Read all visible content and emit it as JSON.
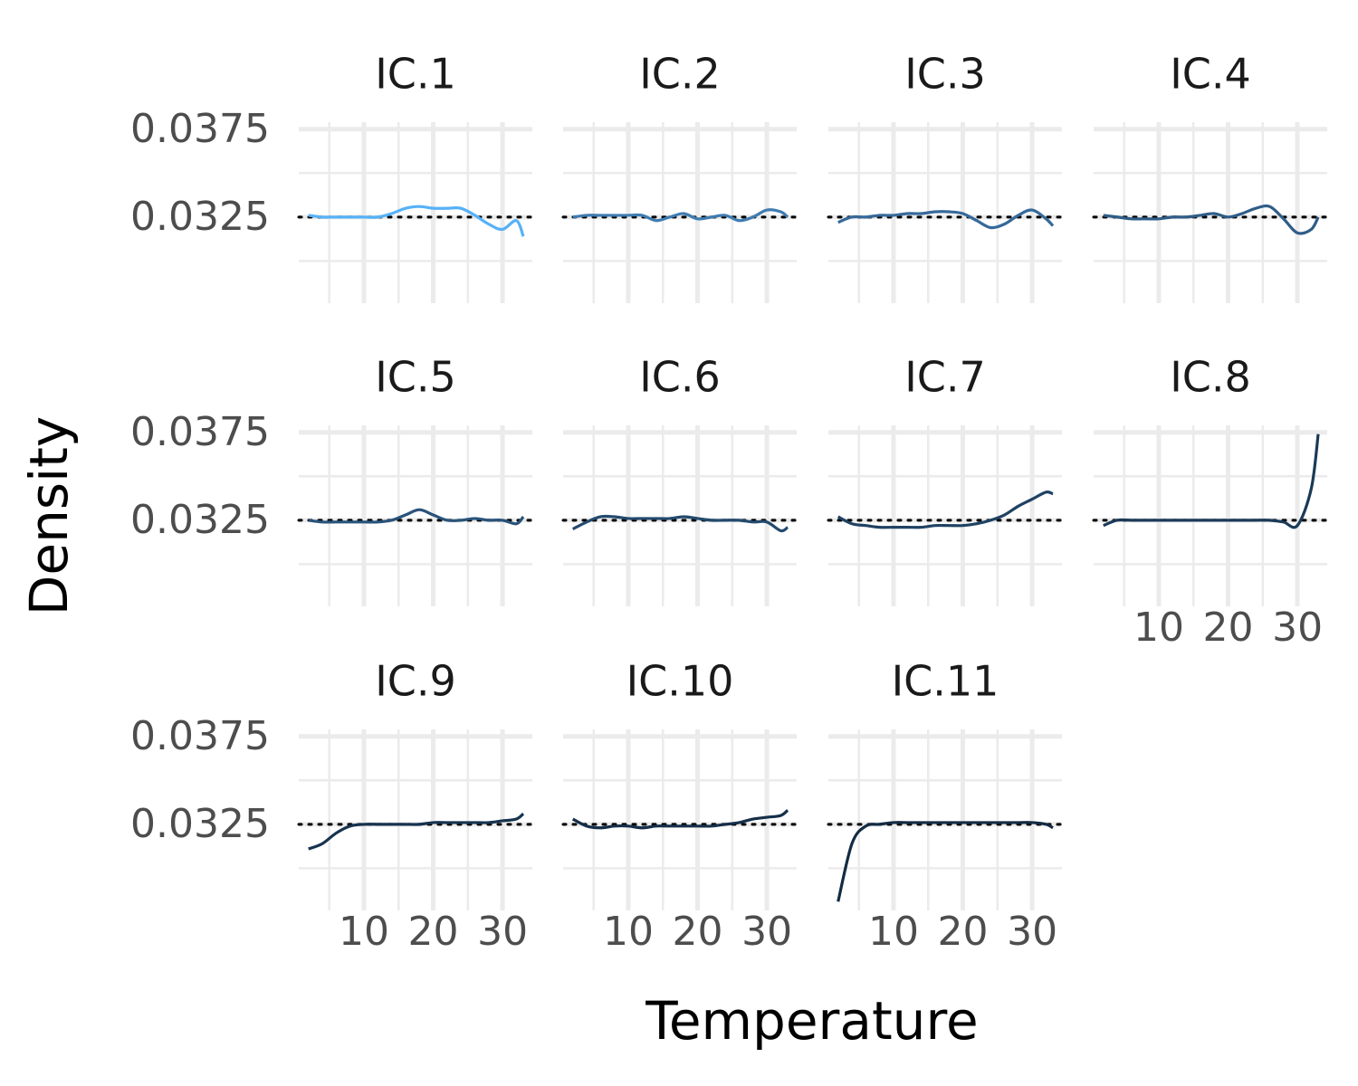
{
  "x_label": "Temperature",
  "y_label": "Density",
  "chart_data": [
    {
      "type": "line",
      "title": "IC.1",
      "color": "#56b1f7",
      "x": [
        2,
        4,
        6,
        8,
        10,
        12,
        14,
        16,
        18,
        20,
        22,
        24,
        26,
        28,
        30,
        32,
        33
      ],
      "values": [
        0.0326,
        0.0325,
        0.0325,
        0.0325,
        0.0325,
        0.0325,
        0.0327,
        0.033,
        0.0331,
        0.033,
        0.033,
        0.033,
        0.0326,
        0.0321,
        0.0318,
        0.0323,
        0.0314
      ],
      "xlim": [
        0.6,
        34.3
      ],
      "ylim": [
        0.0276,
        0.0379
      ],
      "xticks": [
        10,
        20,
        30
      ],
      "yticks": [
        0.0325,
        0.0375
      ],
      "hline": 0.0325,
      "grid": true
    },
    {
      "type": "line",
      "title": "IC.2",
      "color": "#3f7cb0",
      "x": [
        2,
        4,
        6,
        8,
        10,
        12,
        14,
        16,
        18,
        20,
        22,
        24,
        26,
        28,
        30,
        32,
        33
      ],
      "values": [
        0.0325,
        0.0326,
        0.0326,
        0.0326,
        0.0326,
        0.0326,
        0.0323,
        0.0325,
        0.0327,
        0.0324,
        0.0325,
        0.0326,
        0.0323,
        0.0325,
        0.0329,
        0.0328,
        0.0325
      ],
      "xlim": [
        0.6,
        34.3
      ],
      "ylim": [
        0.0276,
        0.0379
      ],
      "xticks": [
        10,
        20,
        30
      ],
      "yticks": [
        0.0325,
        0.0375
      ],
      "hline": 0.0325,
      "grid": true
    },
    {
      "type": "line",
      "title": "IC.3",
      "color": "#36699a",
      "x": [
        2,
        4,
        6,
        8,
        10,
        12,
        14,
        16,
        18,
        20,
        22,
        24,
        26,
        28,
        30,
        32,
        33
      ],
      "values": [
        0.0322,
        0.0325,
        0.0325,
        0.0326,
        0.0326,
        0.0327,
        0.0327,
        0.0328,
        0.0328,
        0.0327,
        0.0323,
        0.0319,
        0.0321,
        0.0326,
        0.0329,
        0.0324,
        0.032
      ],
      "xlim": [
        0.6,
        34.3
      ],
      "ylim": [
        0.0276,
        0.0379
      ],
      "xticks": [
        10,
        20,
        30
      ],
      "yticks": [
        0.0325,
        0.0375
      ],
      "hline": 0.0325,
      "grid": true
    },
    {
      "type": "line",
      "title": "IC.4",
      "color": "#2f5d88",
      "x": [
        2,
        4,
        6,
        8,
        10,
        12,
        14,
        16,
        18,
        20,
        22,
        24,
        26,
        28,
        30,
        32,
        33
      ],
      "values": [
        0.0326,
        0.0325,
        0.0324,
        0.0324,
        0.0324,
        0.0325,
        0.0325,
        0.0326,
        0.0327,
        0.0325,
        0.0327,
        0.033,
        0.0331,
        0.0324,
        0.0316,
        0.0318,
        0.0325
      ],
      "xlim": [
        0.6,
        34.3
      ],
      "ylim": [
        0.0276,
        0.0379
      ],
      "xticks": [
        10,
        20,
        30
      ],
      "yticks": [
        0.0325,
        0.0375
      ],
      "hline": 0.0325,
      "grid": true
    },
    {
      "type": "line",
      "title": "IC.5",
      "color": "#29537a",
      "x": [
        2,
        4,
        6,
        8,
        10,
        12,
        14,
        16,
        18,
        20,
        22,
        24,
        26,
        28,
        30,
        32,
        33
      ],
      "values": [
        0.0325,
        0.0324,
        0.0324,
        0.0324,
        0.0324,
        0.0324,
        0.0325,
        0.0328,
        0.0331,
        0.0328,
        0.0325,
        0.0325,
        0.0326,
        0.0325,
        0.0325,
        0.0323,
        0.0327
      ],
      "xlim": [
        0.6,
        34.3
      ],
      "ylim": [
        0.0276,
        0.0379
      ],
      "xticks": [
        10,
        20,
        30
      ],
      "yticks": [
        0.0325,
        0.0375
      ],
      "hline": 0.0325,
      "grid": true
    },
    {
      "type": "line",
      "title": "IC.6",
      "color": "#244a6e",
      "x": [
        2,
        4,
        6,
        8,
        10,
        12,
        14,
        16,
        18,
        20,
        22,
        24,
        26,
        28,
        30,
        32,
        33
      ],
      "values": [
        0.032,
        0.0324,
        0.0327,
        0.0327,
        0.0326,
        0.0326,
        0.0326,
        0.0326,
        0.0327,
        0.0326,
        0.0325,
        0.0325,
        0.0325,
        0.0324,
        0.0324,
        0.0319,
        0.0321
      ],
      "xlim": [
        0.6,
        34.3
      ],
      "ylim": [
        0.0276,
        0.0379
      ],
      "xticks": [
        10,
        20,
        30
      ],
      "yticks": [
        0.0325,
        0.0375
      ],
      "hline": 0.0325,
      "grid": true
    },
    {
      "type": "line",
      "title": "IC.7",
      "color": "#1f4263",
      "x": [
        2,
        4,
        6,
        8,
        10,
        12,
        14,
        16,
        18,
        20,
        22,
        24,
        26,
        28,
        30,
        32,
        33
      ],
      "values": [
        0.0327,
        0.0323,
        0.0322,
        0.0321,
        0.0321,
        0.0321,
        0.0321,
        0.0322,
        0.0322,
        0.0322,
        0.0323,
        0.0325,
        0.0328,
        0.0333,
        0.0337,
        0.0341,
        0.034
      ],
      "xlim": [
        0.6,
        34.3
      ],
      "ylim": [
        0.0276,
        0.0379
      ],
      "xticks": [
        10,
        20,
        30
      ],
      "yticks": [
        0.0325,
        0.0375
      ],
      "hline": 0.0325,
      "grid": true
    },
    {
      "type": "line",
      "title": "IC.8",
      "color": "#1b3a58",
      "x": [
        2,
        4,
        6,
        8,
        10,
        12,
        14,
        16,
        18,
        20,
        22,
        24,
        26,
        28,
        30,
        32,
        33
      ],
      "values": [
        0.0322,
        0.0325,
        0.0325,
        0.0325,
        0.0325,
        0.0325,
        0.0325,
        0.0325,
        0.0325,
        0.0325,
        0.0325,
        0.0325,
        0.0325,
        0.0324,
        0.0322,
        0.0343,
        0.0374
      ],
      "xlim": [
        0.6,
        34.3
      ],
      "ylim": [
        0.0276,
        0.0379
      ],
      "xticks": [
        10,
        20,
        30
      ],
      "yticks": [
        0.0325,
        0.0375
      ],
      "hline": 0.0325,
      "grid": true
    },
    {
      "type": "line",
      "title": "IC.9",
      "color": "#17334f",
      "x": [
        2,
        4,
        6,
        8,
        10,
        12,
        14,
        16,
        18,
        20,
        22,
        24,
        26,
        28,
        30,
        32,
        33
      ],
      "values": [
        0.0311,
        0.0314,
        0.032,
        0.0324,
        0.0325,
        0.0325,
        0.0325,
        0.0325,
        0.0325,
        0.0326,
        0.0326,
        0.0326,
        0.0326,
        0.0326,
        0.0327,
        0.0328,
        0.0331
      ],
      "xlim": [
        0.6,
        34.3
      ],
      "ylim": [
        0.0276,
        0.0379
      ],
      "xticks": [
        10,
        20,
        30
      ],
      "yticks": [
        0.0325,
        0.0375
      ],
      "hline": 0.0325,
      "grid": true
    },
    {
      "type": "line",
      "title": "IC.10",
      "color": "#152f49",
      "x": [
        2,
        4,
        6,
        8,
        10,
        12,
        14,
        16,
        18,
        20,
        22,
        24,
        26,
        28,
        30,
        32,
        33
      ],
      "values": [
        0.0328,
        0.0324,
        0.0323,
        0.0324,
        0.0324,
        0.0323,
        0.0324,
        0.0324,
        0.0324,
        0.0324,
        0.0324,
        0.0325,
        0.0326,
        0.0328,
        0.0329,
        0.033,
        0.0333
      ],
      "xlim": [
        0.6,
        34.3
      ],
      "ylim": [
        0.0276,
        0.0379
      ],
      "xticks": [
        10,
        20,
        30
      ],
      "yticks": [
        0.0325,
        0.0375
      ],
      "hline": 0.0325,
      "grid": true
    },
    {
      "type": "line",
      "title": "IC.11",
      "color": "#132b43",
      "x": [
        2,
        4,
        6,
        8,
        10,
        12,
        14,
        16,
        18,
        20,
        22,
        24,
        26,
        28,
        30,
        32,
        33
      ],
      "values": [
        0.0281,
        0.0314,
        0.0324,
        0.0325,
        0.0326,
        0.0326,
        0.0326,
        0.0326,
        0.0326,
        0.0326,
        0.0326,
        0.0326,
        0.0326,
        0.0326,
        0.0326,
        0.0325,
        0.0323
      ],
      "xlim": [
        0.6,
        34.3
      ],
      "ylim": [
        0.0276,
        0.0379
      ],
      "xticks": [
        10,
        20,
        30
      ],
      "yticks": [
        0.0325,
        0.0375
      ],
      "hline": 0.0325,
      "grid": true
    }
  ]
}
